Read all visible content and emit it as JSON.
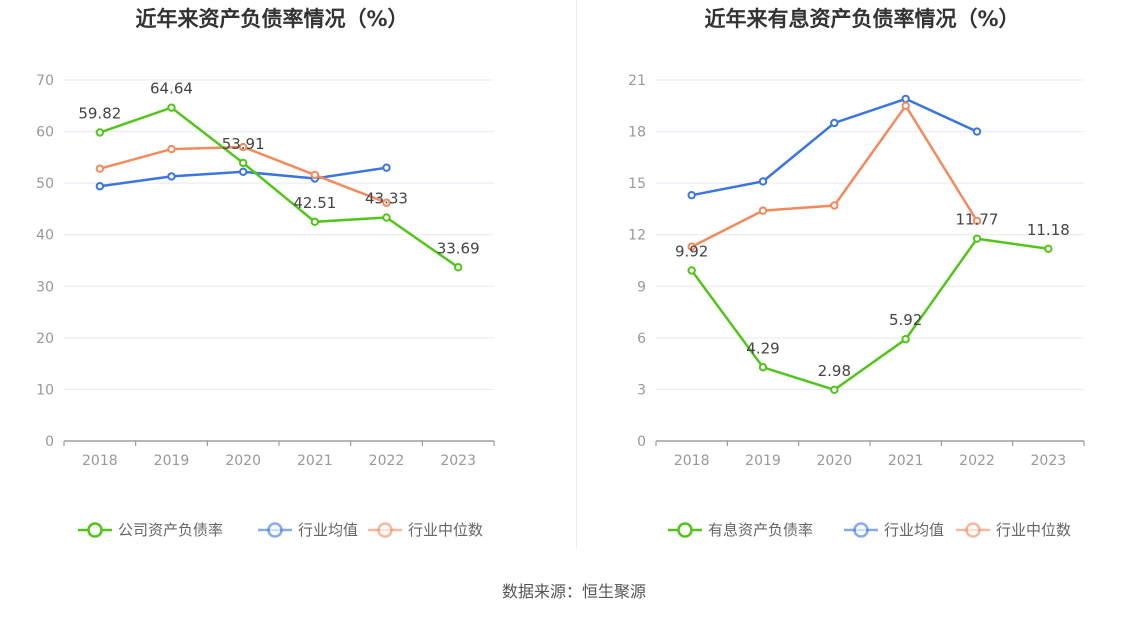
{
  "source_text": "数据来源：恒生聚源",
  "colors": {
    "company": "#52c41a",
    "mean": "#3a75e0",
    "median": "#f28a5c",
    "grid": "#e6e9f2",
    "axis": "#8c8c8c",
    "tick_text": "#999999",
    "title_text": "#333333",
    "label_text": "#444444",
    "legend_text": "#666666"
  },
  "chart_data": [
    {
      "type": "line",
      "title": "近年来资产负债率情况（%）",
      "categories": [
        "2018",
        "2019",
        "2020",
        "2021",
        "2022",
        "2023"
      ],
      "ylim": [
        0,
        70
      ],
      "yticks": [
        0,
        10,
        20,
        30,
        40,
        50,
        60,
        70
      ],
      "grid": true,
      "legend_placement": "bottom",
      "series": [
        {
          "name": "公司资产负债率",
          "color_key": "company",
          "show_labels": true,
          "values": [
            59.82,
            64.64,
            53.91,
            42.51,
            43.33,
            33.69
          ]
        },
        {
          "name": "行业均值",
          "color_key": "mean",
          "show_labels": false,
          "values": [
            49.4,
            51.3,
            52.2,
            50.9,
            53.0,
            null
          ]
        },
        {
          "name": "行业中位数",
          "color_key": "median",
          "show_labels": false,
          "values": [
            52.8,
            56.6,
            57.0,
            51.6,
            46.2,
            null
          ]
        }
      ]
    },
    {
      "type": "line",
      "title": "近年来有息资产负债率情况（%）",
      "categories": [
        "2018",
        "2019",
        "2020",
        "2021",
        "2022",
        "2023"
      ],
      "ylim": [
        0,
        21
      ],
      "yticks": [
        0,
        3,
        6,
        9,
        12,
        15,
        18,
        21
      ],
      "grid": true,
      "legend_placement": "bottom",
      "series": [
        {
          "name": "有息资产负债率",
          "color_key": "company",
          "show_labels": true,
          "values": [
            9.92,
            4.29,
            2.98,
            5.92,
            11.77,
            11.18
          ]
        },
        {
          "name": "行业均值",
          "color_key": "mean",
          "show_labels": false,
          "values": [
            14.3,
            15.1,
            18.5,
            19.9,
            18.0,
            null
          ]
        },
        {
          "name": "行业中位数",
          "color_key": "median",
          "show_labels": false,
          "values": [
            11.3,
            13.4,
            13.7,
            19.5,
            12.8,
            null
          ]
        }
      ]
    }
  ]
}
